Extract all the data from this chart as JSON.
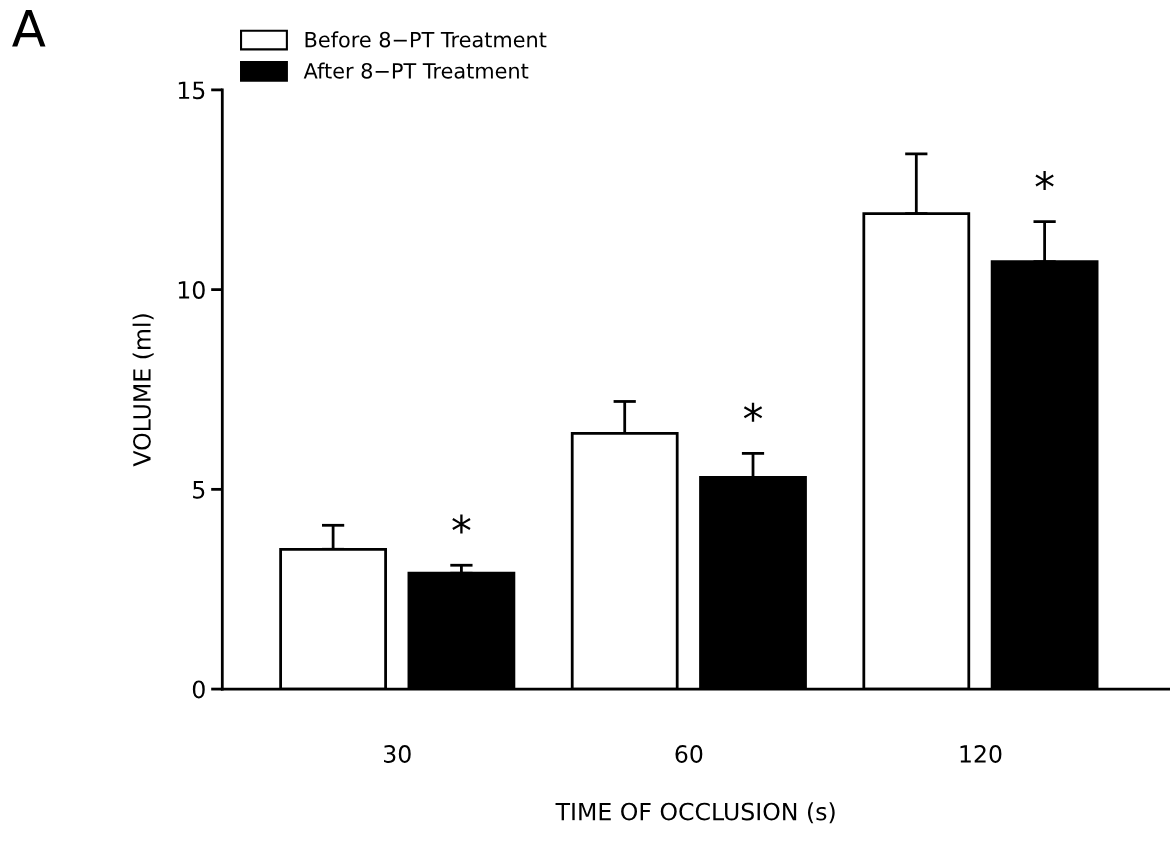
{
  "chart_data": {
    "type": "bar",
    "xlabel": "TIME OF OCCLUSION (s)",
    "ylabel": "VOLUME (ml)",
    "categories": [
      "30",
      "60",
      "120"
    ],
    "series": [
      {
        "name": "Before 8−PT Treatment",
        "color": "#ffffff",
        "values": [
          3.5,
          6.4,
          11.9
        ],
        "errors": [
          [
            3.5,
            4.1
          ],
          [
            6.4,
            7.2
          ],
          [
            11.9,
            13.4
          ]
        ]
      },
      {
        "name": "After 8−PT Treatment",
        "color": "#000000",
        "values": [
          2.9,
          5.3,
          10.7
        ],
        "errors": [
          [
            2.9,
            3.1
          ],
          [
            5.3,
            5.9
          ],
          [
            10.7,
            11.7
          ]
        ]
      }
    ],
    "ylim": [
      0,
      15
    ],
    "yticks": [
      0,
      5,
      10,
      15
    ],
    "grid": false,
    "legend": "top left",
    "annotations": [
      "A",
      "*",
      "*",
      "*"
    ]
  }
}
